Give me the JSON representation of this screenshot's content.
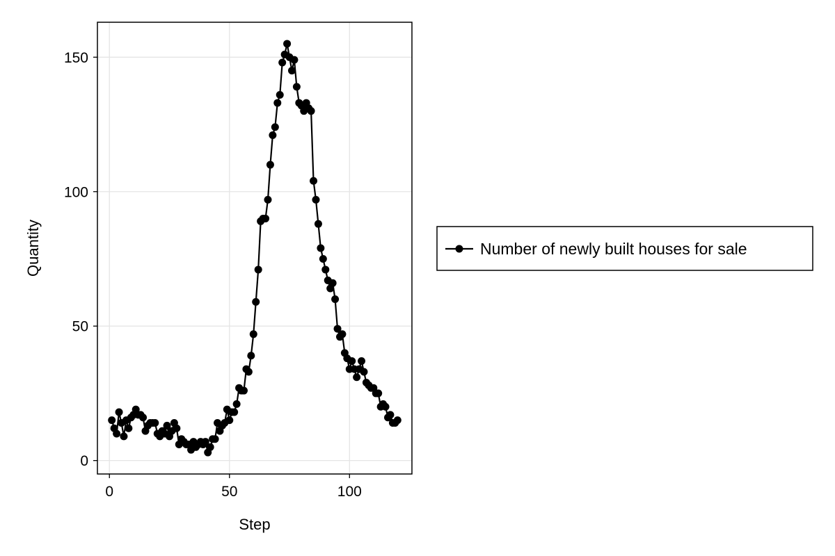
{
  "chart_data": {
    "type": "line",
    "xlabel": "Step",
    "ylabel": "Quantity",
    "xlim": [
      -5,
      126
    ],
    "ylim": [
      -5,
      163
    ],
    "xticks": [
      0,
      50,
      100
    ],
    "yticks": [
      0,
      50,
      100,
      150
    ],
    "xtick_labels": [
      "0",
      "50",
      "100"
    ],
    "ytick_labels": [
      "0",
      "50",
      "100",
      "150"
    ],
    "grid": true,
    "legend_position": "right",
    "series": [
      {
        "name": "Number of newly built houses for sale",
        "color": "#000000",
        "marker": "circle",
        "x": [
          1,
          2,
          3,
          4,
          5,
          6,
          7,
          8,
          9,
          10,
          11,
          12,
          13,
          14,
          15,
          16,
          17,
          18,
          19,
          20,
          21,
          22,
          23,
          24,
          25,
          26,
          27,
          28,
          29,
          30,
          31,
          32,
          33,
          34,
          35,
          36,
          37,
          38,
          39,
          40,
          41,
          42,
          43,
          44,
          45,
          46,
          47,
          48,
          49,
          50,
          51,
          52,
          53,
          54,
          55,
          56,
          57,
          58,
          59,
          60,
          61,
          62,
          63,
          64,
          65,
          66,
          67,
          68,
          69,
          70,
          71,
          72,
          73,
          74,
          75,
          76,
          77,
          78,
          79,
          80,
          81,
          82,
          83,
          84,
          85,
          86,
          87,
          88,
          89,
          90,
          91,
          92,
          93,
          94,
          95,
          96,
          97,
          98,
          99,
          100,
          101,
          102,
          103,
          104,
          105,
          106,
          107,
          108,
          109,
          110,
          111,
          112,
          113,
          114,
          115,
          116,
          117,
          118,
          119,
          120
        ],
        "values": [
          15,
          12,
          10,
          18,
          14,
          9,
          15,
          12,
          16,
          17,
          19,
          17,
          17,
          16,
          11,
          13,
          14,
          14,
          14,
          10,
          9,
          11,
          10,
          13,
          9,
          11,
          14,
          12,
          6,
          8,
          7,
          6,
          6,
          4,
          7,
          5,
          6,
          7,
          6,
          7,
          3,
          5,
          8,
          8,
          14,
          11,
          13,
          14,
          19,
          15,
          18,
          18,
          21,
          27,
          26,
          26,
          34,
          33,
          39,
          47,
          59,
          71,
          89,
          90,
          90,
          97,
          110,
          121,
          124,
          133,
          136,
          148,
          151,
          155,
          150,
          145,
          149,
          139,
          133,
          132,
          130,
          133,
          131,
          130,
          104,
          97,
          88,
          79,
          75,
          71,
          67,
          64,
          66,
          60,
          49,
          46,
          47,
          40,
          38,
          34,
          37,
          34,
          31,
          34,
          37,
          33,
          29,
          28,
          27,
          27,
          25,
          25,
          20,
          21,
          20,
          16,
          17,
          14,
          14,
          15
        ]
      }
    ]
  }
}
